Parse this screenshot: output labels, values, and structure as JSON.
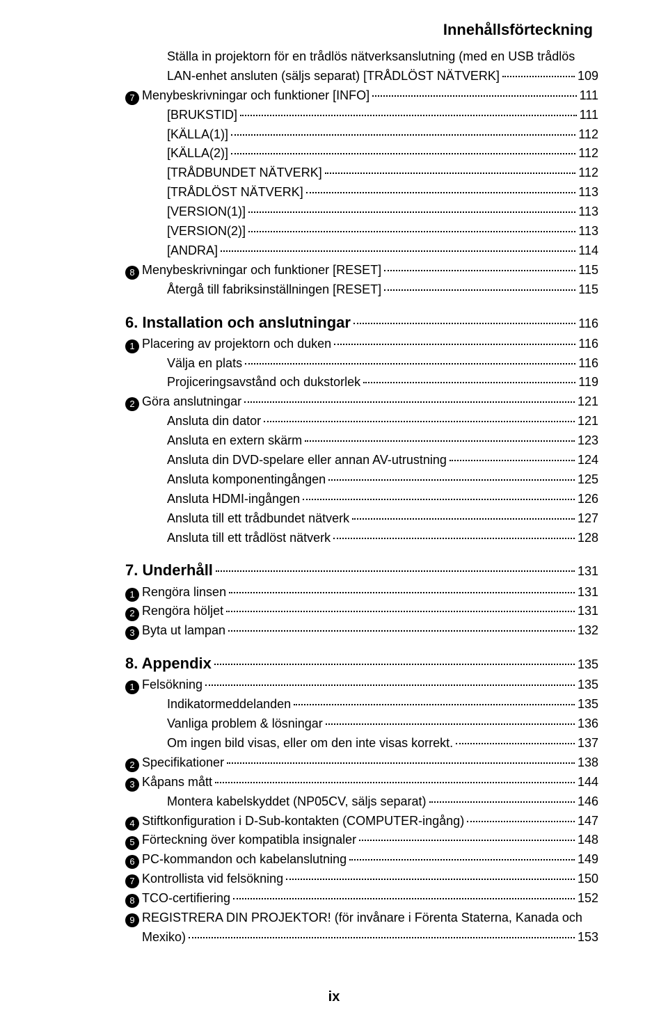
{
  "header": "Innehållsförteckning",
  "footer": "ix",
  "entries": [
    {
      "level": 1,
      "wrap": true,
      "line1": "Ställa in projektorn för en trådlös nätverksanslutning (med en USB trådlös",
      "line2": "LAN-enhet ansluten (säljs separat) [TRÅDLÖST NÄTVERK]",
      "page": "109"
    },
    {
      "level": 0,
      "bullet": "7",
      "text": "Menybeskrivningar och funktioner [INFO]",
      "page": "111"
    },
    {
      "level": 1,
      "text": "[BRUKSTID]",
      "page": "111"
    },
    {
      "level": 1,
      "text": "[KÄLLA(1)]",
      "page": "112"
    },
    {
      "level": 1,
      "text": "[KÄLLA(2)]",
      "page": "112"
    },
    {
      "level": 1,
      "text": "[TRÅDBUNDET NÄTVERK]",
      "page": "112"
    },
    {
      "level": 1,
      "text": "[TRÅDLÖST NÄTVERK]",
      "page": "113"
    },
    {
      "level": 1,
      "text": "[VERSION(1)]",
      "page": "113"
    },
    {
      "level": 1,
      "text": "[VERSION(2)]",
      "page": "113"
    },
    {
      "level": 1,
      "text": "[ANDRA]",
      "page": "114"
    },
    {
      "level": 0,
      "bullet": "8",
      "text": "Menybeskrivningar och funktioner [RESET]",
      "page": "115"
    },
    {
      "level": 1,
      "text": "Återgå till fabriksinställningen [RESET]",
      "page": "115"
    },
    {
      "heading": true,
      "text": "6. Installation och anslutningar",
      "page": "116"
    },
    {
      "level": 0,
      "bullet": "1",
      "text": "Placering av projektorn och duken",
      "page": "116"
    },
    {
      "level": 1,
      "text": "Välja en plats",
      "page": "116"
    },
    {
      "level": 1,
      "text": "Projiceringsavstånd och dukstorlek",
      "page": "119"
    },
    {
      "level": 0,
      "bullet": "2",
      "text": "Göra anslutningar",
      "page": "121"
    },
    {
      "level": 1,
      "text": "Ansluta din dator",
      "page": "121"
    },
    {
      "level": 1,
      "text": "Ansluta en extern skärm",
      "page": "123"
    },
    {
      "level": 1,
      "text": "Ansluta din DVD-spelare eller annan AV-utrustning",
      "page": "124"
    },
    {
      "level": 1,
      "text": "Ansluta komponentingången",
      "page": "125"
    },
    {
      "level": 1,
      "text": "Ansluta HDMI-ingången",
      "page": "126"
    },
    {
      "level": 1,
      "text": "Ansluta till ett trådbundet nätverk",
      "page": "127"
    },
    {
      "level": 1,
      "text": "Ansluta till ett trådlöst nätverk",
      "page": "128"
    },
    {
      "heading": true,
      "text": "7. Underhåll",
      "page": "131"
    },
    {
      "level": 0,
      "bullet": "1",
      "text": "Rengöra linsen",
      "page": "131"
    },
    {
      "level": 0,
      "bullet": "2",
      "text": "Rengöra höljet",
      "page": "131"
    },
    {
      "level": 0,
      "bullet": "3",
      "text": "Byta ut lampan",
      "page": "132"
    },
    {
      "heading": true,
      "text": "8. Appendix",
      "page": "135"
    },
    {
      "level": 0,
      "bullet": "1",
      "text": "Felsökning",
      "page": "135"
    },
    {
      "level": 1,
      "text": "Indikatormeddelanden",
      "page": "135"
    },
    {
      "level": 1,
      "text": "Vanliga problem & lösningar",
      "page": "136"
    },
    {
      "level": 1,
      "text": "Om ingen bild visas, eller om den inte visas korrekt.",
      "page": "137"
    },
    {
      "level": 0,
      "bullet": "2",
      "text": "Specifikationer",
      "page": "138"
    },
    {
      "level": 0,
      "bullet": "3",
      "text": "Kåpans mått",
      "page": "144"
    },
    {
      "level": 1,
      "text": "Montera kabelskyddet (NP05CV, säljs separat)",
      "page": "146"
    },
    {
      "level": 0,
      "bullet": "4",
      "text": "Stiftkonfiguration i D-Sub-kontakten (COMPUTER-ingång)",
      "page": "147"
    },
    {
      "level": 0,
      "bullet": "5",
      "text": "Förteckning över kompatibla insignaler",
      "page": "148"
    },
    {
      "level": 0,
      "bullet": "6",
      "text": "PC-kommandon och kabelanslutning",
      "page": "149"
    },
    {
      "level": 0,
      "bullet": "7",
      "text": "Kontrollista vid felsökning",
      "page": "150"
    },
    {
      "level": 0,
      "bullet": "8",
      "text": "TCO-certifiering",
      "page": "152"
    },
    {
      "level": 0,
      "bullet": "9",
      "wrap": true,
      "line1_with_bullet": true,
      "line1": "REGISTRERA DIN PROJEKTOR! (för invånare i Förenta Staterna, Kanada och",
      "line2": "Mexiko)",
      "page": "153"
    }
  ]
}
